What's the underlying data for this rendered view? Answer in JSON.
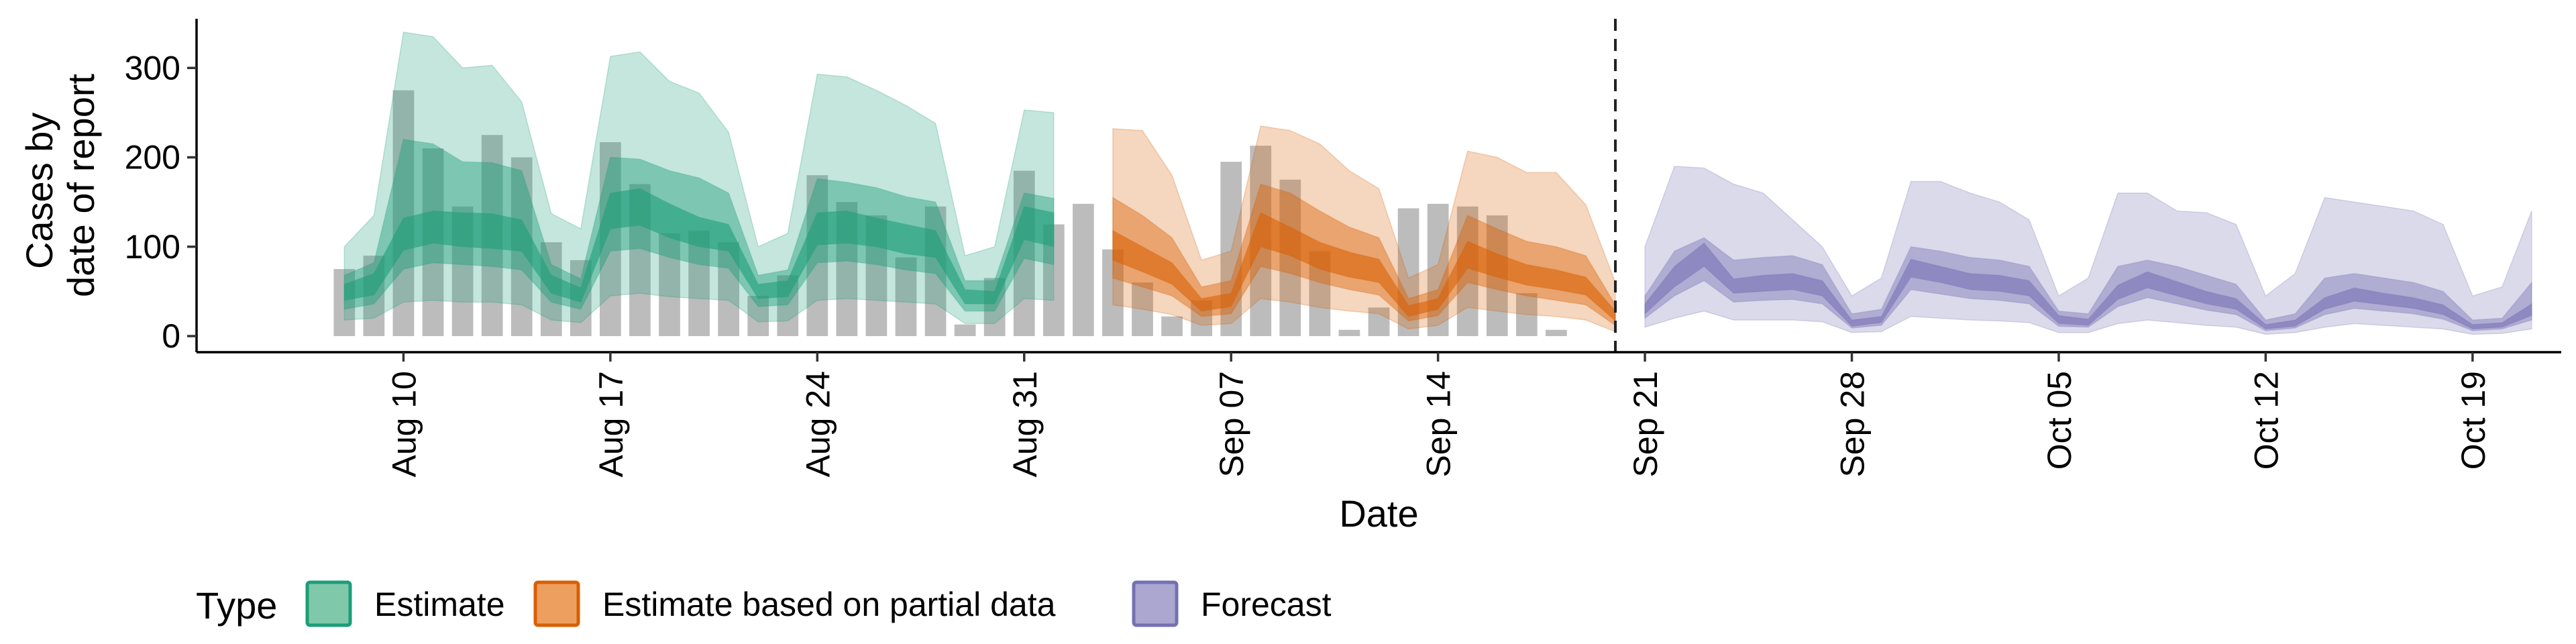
{
  "chart_data": {
    "type": "area",
    "xlabel": "Date",
    "ylabel": [
      "Cases by",
      "date of report"
    ],
    "ylim": [
      -18,
      355
    ],
    "yticks": [
      0,
      100,
      200,
      300
    ],
    "x_axis_type": "date",
    "xlim": [
      "2020-08-03",
      "2020-10-22"
    ],
    "xticks": [
      {
        "date": "2020-08-10",
        "label": "Aug 10"
      },
      {
        "date": "2020-08-17",
        "label": "Aug 17"
      },
      {
        "date": "2020-08-24",
        "label": "Aug 24"
      },
      {
        "date": "2020-08-31",
        "label": "Aug 31"
      },
      {
        "date": "2020-09-07",
        "label": "Sep 07"
      },
      {
        "date": "2020-09-14",
        "label": "Sep 14"
      },
      {
        "date": "2020-09-21",
        "label": "Sep 21"
      },
      {
        "date": "2020-09-28",
        "label": "Sep 28"
      },
      {
        "date": "2020-10-05",
        "label": "Oct 05"
      },
      {
        "date": "2020-10-12",
        "label": "Oct 12"
      },
      {
        "date": "2020-10-19",
        "label": "Oct 19"
      }
    ],
    "vline_date": "2020-09-20",
    "bars": {
      "start_date": "2020-08-08",
      "color": "#b3b3b3",
      "values": [
        75,
        90,
        275,
        210,
        145,
        225,
        200,
        105,
        85,
        217,
        170,
        115,
        118,
        105,
        45,
        68,
        180,
        150,
        135,
        88,
        145,
        13,
        65,
        185,
        125,
        148,
        97,
        60,
        22,
        40,
        195,
        213,
        175,
        95,
        7,
        32,
        143,
        148,
        145,
        135,
        48,
        7
      ]
    },
    "legend": {
      "title": "Type",
      "position": "bottom",
      "items": [
        {
          "label": "Estimate",
          "fill": "#7fc8aa",
          "stroke": "#1b9e77"
        },
        {
          "label": "Estimate based on partial data",
          "fill": "#ed9f5f",
          "stroke": "#d95f02"
        },
        {
          "label": "Forecast",
          "fill": "#aba7d0",
          "stroke": "#7570b3"
        }
      ]
    },
    "series": [
      {
        "type_index": 0,
        "color": "#1b9e77",
        "start_date": "2020-08-08",
        "median": [
          50,
          58,
          113,
          122,
          119,
          118,
          112,
          58,
          45,
          140,
          145,
          128,
          115,
          110,
          50,
          53,
          120,
          122,
          115,
          108,
          102,
          44,
          42,
          126,
          118
        ],
        "bands": [
          {
            "lower": [
              18,
              20,
              38,
              40,
              38,
              38,
              35,
              18,
              15,
              45,
              48,
              44,
              42,
              40,
              16,
              17,
              40,
              42,
              40,
              38,
              36,
              14,
              14,
              42,
              40
            ],
            "upper": [
              100,
              135,
              340,
              335,
              300,
              303,
              262,
              137,
              120,
              313,
              318,
              285,
              272,
              228,
              100,
              115,
              293,
              290,
              275,
              258,
              238,
              90,
              100,
              253,
              250
            ]
          },
          {
            "lower": [
              30,
              36,
              75,
              82,
              80,
              78,
              74,
              38,
              30,
              95,
              98,
              88,
              80,
              76,
              33,
              35,
              82,
              84,
              80,
              74,
              70,
              28,
              28,
              87,
              80
            ],
            "upper": [
              68,
              82,
              220,
              215,
              195,
              194,
              185,
              80,
              64,
              200,
              198,
              185,
              177,
              160,
              68,
              74,
              176,
              172,
              166,
              156,
              150,
              62,
              62,
              160,
              154
            ]
          },
          {
            "lower": [
              40,
              46,
              96,
              104,
              100,
              98,
              95,
              48,
              38,
              120,
              124,
              110,
              100,
              95,
              42,
              44,
              102,
              104,
              100,
              92,
              88,
              36,
              36,
              108,
              100
            ],
            "upper": [
              58,
              70,
              132,
              140,
              138,
              137,
              130,
              68,
              54,
              160,
              165,
              148,
              133,
              125,
              58,
              62,
              138,
              140,
              132,
              125,
              118,
              52,
              50,
              145,
              138
            ]
          }
        ]
      },
      {
        "type_index": 1,
        "color": "#d95f02",
        "start_date": "2020-09-03",
        "median": [
          100,
          85,
          70,
          35,
          40,
          118,
          105,
          90,
          80,
          72,
          28,
          36,
          90,
          78,
          68,
          62,
          55,
          22
        ],
        "bands": [
          {
            "lower": [
              35,
              30,
              24,
              12,
              14,
              42,
              38,
              32,
              28,
              25,
              8,
              12,
              32,
              28,
              24,
              22,
              18,
              5
            ],
            "upper": [
              232,
              230,
              180,
              85,
              95,
              235,
              230,
              215,
              185,
              165,
              65,
              80,
              207,
              200,
              183,
              183,
              147,
              60
            ]
          },
          {
            "lower": [
              65,
              55,
              45,
              22,
              25,
              78,
              70,
              60,
              52,
              46,
              17,
              23,
              60,
              52,
              45,
              40,
              35,
              12
            ],
            "upper": [
              155,
              135,
              110,
              55,
              62,
              170,
              160,
              140,
              122,
              110,
              42,
              52,
              135,
              120,
              106,
              100,
              90,
              35
            ]
          },
          {
            "lower": [
              85,
              72,
              58,
              28,
              33,
              100,
              90,
              75,
              66,
              60,
              22,
              30,
              76,
              66,
              57,
              52,
              46,
              17
            ],
            "upper": [
              118,
              100,
              82,
              42,
              48,
              138,
              122,
              105,
              94,
              86,
              34,
              42,
              106,
              92,
              80,
              74,
              66,
              28
            ]
          }
        ]
      },
      {
        "type_index": 2,
        "color": "#7570b3",
        "start_date": "2020-09-21",
        "median": [
          30,
          65,
          90,
          55,
          58,
          60,
          52,
          14,
          18,
          75,
          68,
          60,
          58,
          52,
          18,
          15,
          48,
          62,
          52,
          42,
          35,
          10,
          14,
          35,
          45,
          40,
          36,
          28,
          10,
          12,
          28
        ],
        "bands": [
          {
            "lower": [
              10,
              20,
              28,
              18,
              18,
              18,
              16,
              4,
              5,
              22,
              20,
              18,
              17,
              15,
              4,
              4,
              14,
              18,
              15,
              12,
              10,
              2,
              4,
              10,
              14,
              12,
              10,
              8,
              2,
              3,
              8
            ],
            "upper": [
              100,
              190,
              188,
              170,
              160,
              130,
              100,
              45,
              65,
              173,
              173,
              160,
              150,
              130,
              45,
              65,
              160,
              160,
              140,
              138,
              125,
              45,
              70,
              155,
              150,
              145,
              140,
              125,
              45,
              55,
              140
            ]
          },
          {
            "lower": [
              20,
              45,
              62,
              38,
              40,
              41,
              36,
              9,
              12,
              52,
              47,
              42,
              40,
              36,
              11,
              10,
              33,
              43,
              36,
              29,
              24,
              6,
              9,
              24,
              31,
              28,
              25,
              19,
              6,
              8,
              18
            ],
            "upper": [
              45,
              95,
              110,
              85,
              88,
              90,
              80,
              25,
              30,
              100,
              95,
              88,
              85,
              78,
              28,
              25,
              78,
              85,
              78,
              68,
              58,
              18,
              25,
              65,
              70,
              65,
              60,
              50,
              18,
              20,
              60
            ]
          },
          {
            "lower": [
              25,
              55,
              78,
              48,
              50,
              52,
              45,
              11,
              15,
              66,
              60,
              52,
              50,
              45,
              14,
              12,
              41,
              54,
              45,
              36,
              30,
              8,
              11,
              30,
              39,
              35,
              31,
              24,
              8,
              10,
              23
            ],
            "upper": [
              36,
              78,
              104,
              64,
              68,
              70,
              62,
              18,
              22,
              86,
              78,
              70,
              68,
              62,
              23,
              19,
              57,
              72,
              61,
              50,
              42,
              13,
              18,
              43,
              54,
              48,
              43,
              35,
              13,
              15,
              36
            ]
          }
        ]
      }
    ]
  }
}
